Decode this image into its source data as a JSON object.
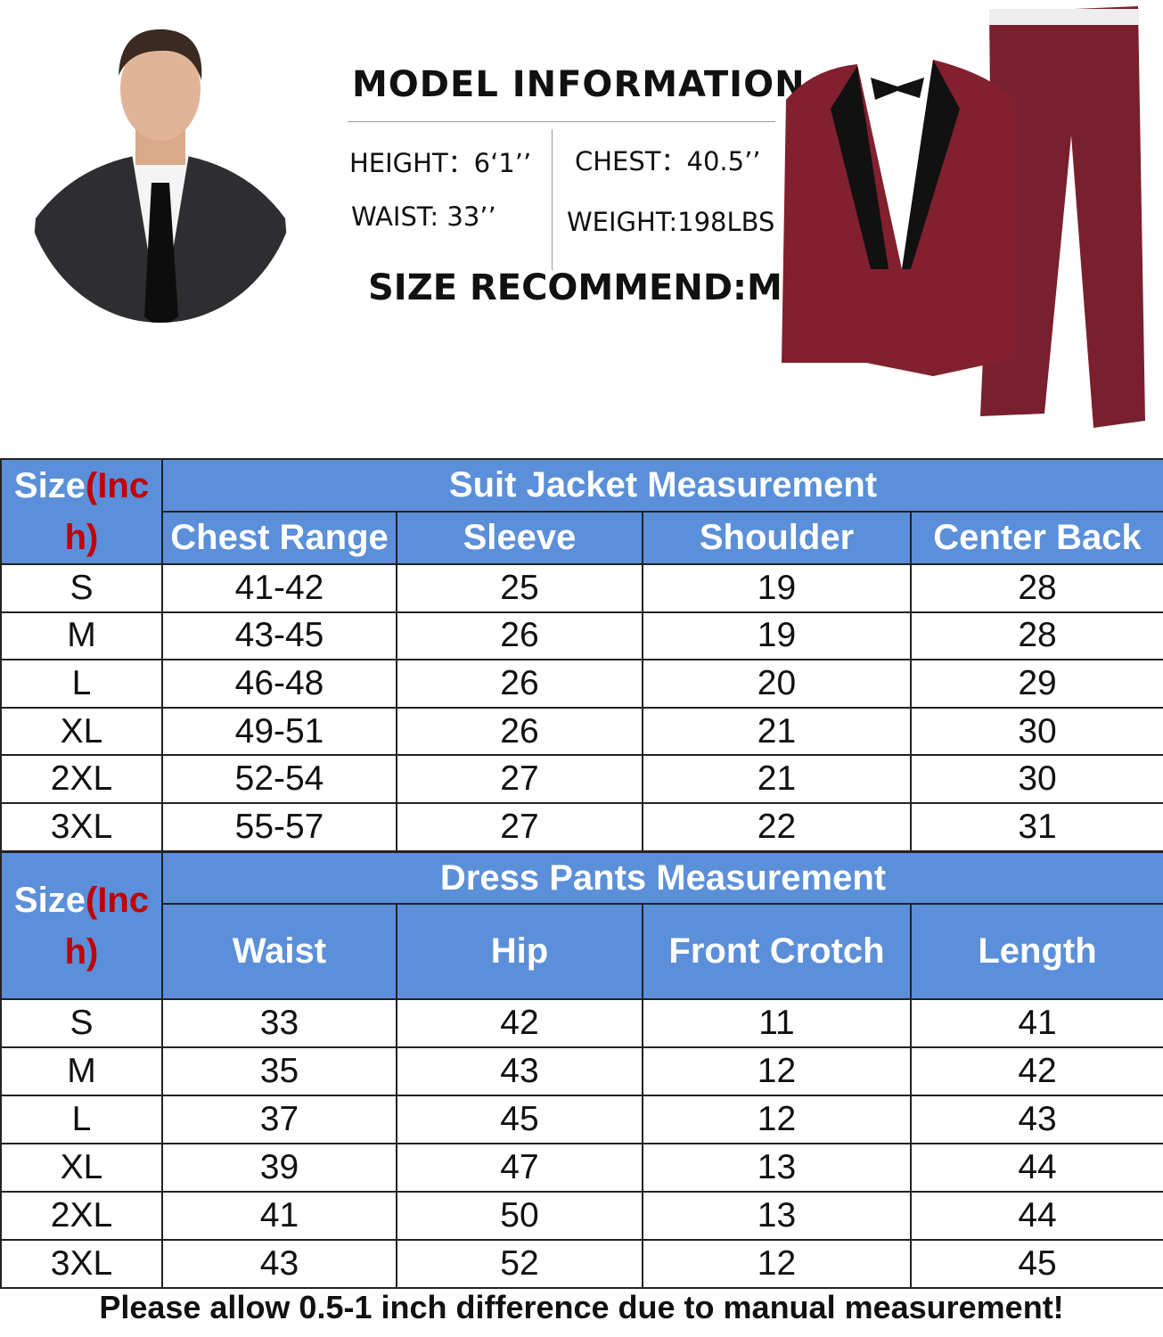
{
  "model_info": {
    "title": "MODEL INFORMATION",
    "height": "HEIGHT：6‘1’’",
    "chest": "CHEST：40.5’’",
    "waist": "WAIST: 33’’",
    "weight": "WEIGHT:198LBS",
    "recommend": "SIZE RECOMMEND:M"
  },
  "size_label": {
    "main": "Size",
    "unit": "(Inch)"
  },
  "jacket": {
    "title": "Suit Jacket Measurement",
    "columns": [
      "Chest Range",
      "Sleeve",
      "Shoulder",
      "Center Back"
    ],
    "rows": [
      [
        "S",
        "41-42",
        "25",
        "19",
        "28"
      ],
      [
        "M",
        "43-45",
        "26",
        "19",
        "28"
      ],
      [
        "L",
        "46-48",
        "26",
        "20",
        "29"
      ],
      [
        "XL",
        "49-51",
        "26",
        "21",
        "30"
      ],
      [
        "2XL",
        "52-54",
        "27",
        "21",
        "30"
      ],
      [
        "3XL",
        "55-57",
        "27",
        "22",
        "31"
      ]
    ]
  },
  "pants": {
    "title": "Dress Pants Measurement",
    "columns": [
      "Waist",
      "Hip",
      "Front Crotch",
      "Length"
    ],
    "rows": [
      [
        "S",
        "33",
        "42",
        "11",
        "41"
      ],
      [
        "M",
        "35",
        "43",
        "12",
        "42"
      ],
      [
        "L",
        "37",
        "45",
        "12",
        "43"
      ],
      [
        "XL",
        "39",
        "47",
        "13",
        "44"
      ],
      [
        "2XL",
        "41",
        "50",
        "13",
        "44"
      ],
      [
        "3XL",
        "43",
        "52",
        "12",
        "45"
      ]
    ]
  },
  "footer": "Please allow 0.5-1 inch difference due to manual measurement!"
}
